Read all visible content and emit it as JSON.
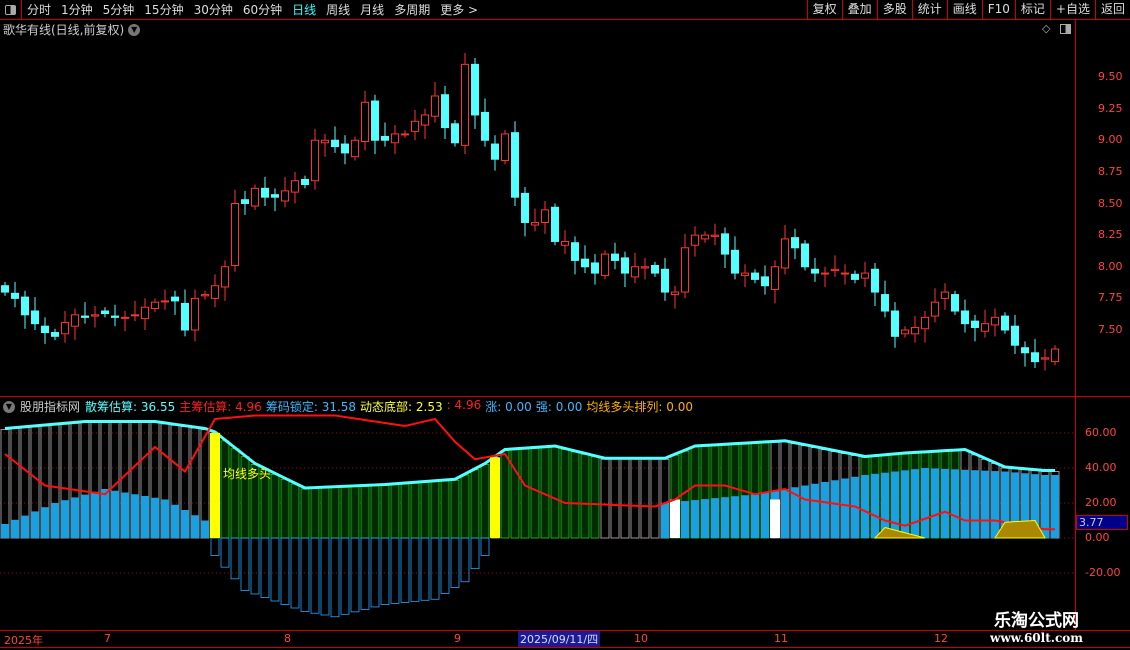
{
  "toolbar": {
    "periods": [
      "分时",
      "1分钟",
      "5分钟",
      "15分钟",
      "30分钟",
      "60分钟",
      "日线",
      "周线",
      "月线",
      "多周期",
      "更多 >"
    ],
    "active": "日线",
    "right": [
      "复权",
      "叠加",
      "多股",
      "统计",
      "画线",
      "F10",
      "标记",
      "+自选",
      "返回"
    ]
  },
  "price_panel": {
    "title": "歌华有线(日线,前复权)",
    "y_ticks": [
      "9.50",
      "9.25",
      "9.00",
      "8.75",
      "8.50",
      "8.25",
      "8.00",
      "7.75",
      "7.50"
    ],
    "closes": [
      7.8,
      7.75,
      7.62,
      7.55,
      7.48,
      7.45,
      7.56,
      7.62,
      7.6,
      7.62,
      7.63,
      7.6,
      7.6,
      7.62,
      7.68,
      7.72,
      7.73,
      7.73,
      7.5,
      7.75,
      7.78,
      7.85,
      8.0,
      8.5,
      8.5,
      8.62,
      8.55,
      8.55,
      8.6,
      8.68,
      8.65,
      9.0,
      9.0,
      8.95,
      8.9,
      9.0,
      9.3,
      9.0,
      9.0,
      9.05,
      9.05,
      9.15,
      9.2,
      9.35,
      9.1,
      8.98,
      9.6,
      9.2,
      9.0,
      8.85,
      9.05,
      8.55,
      8.35,
      8.35,
      8.45,
      8.2,
      8.2,
      8.05,
      8.0,
      7.95,
      8.1,
      8.05,
      7.95,
      8.0,
      8.0,
      7.95,
      7.8,
      7.8,
      8.15,
      8.25,
      8.25,
      8.25,
      8.1,
      7.95,
      7.95,
      7.9,
      7.85,
      8.0,
      8.22,
      8.15,
      8.0,
      7.95,
      7.95,
      7.98,
      7.95,
      7.9,
      7.95,
      7.8,
      7.65,
      7.45,
      7.5,
      7.52,
      7.6,
      7.72,
      7.8,
      7.65,
      7.55,
      7.52,
      7.55,
      7.6,
      7.5,
      7.38,
      7.32,
      7.25,
      7.28,
      7.35
    ],
    "up_color": "#ff3232",
    "down_color": "#54ffff"
  },
  "indicator": {
    "name": "股朋指标网",
    "fields": [
      {
        "label": "散筹估算:",
        "value": "36.55",
        "color": "#54ffff"
      },
      {
        "label": "主筹估算:",
        "value": "4.96",
        "color": "#ff2020"
      },
      {
        "label": "筹码锁定:",
        "value": "31.58",
        "color": "#3fb8ff"
      },
      {
        "label": "动态底部:",
        "value": "2.53",
        "color": "#ffff33"
      },
      {
        "label": ":",
        "value": "4.96",
        "color": "#ff2020"
      },
      {
        "label": "涨:",
        "value": "0.00",
        "color": "#3fb8ff"
      },
      {
        "label": "强:",
        "value": "0.00",
        "color": "#3fb8ff"
      },
      {
        "label": "均线多头排列:",
        "value": "0.00",
        "color": "#ffb000"
      }
    ],
    "annotation": "均线多头",
    "y_ticks": [
      "60.00",
      "40.00",
      "20.00",
      "0.00",
      "-20.00"
    ],
    "current_value": "3.77",
    "top_keys": [
      [
        0,
        62
      ],
      [
        8,
        66
      ],
      [
        15,
        66
      ],
      [
        20,
        62
      ],
      [
        21,
        60
      ],
      [
        25,
        42
      ],
      [
        30,
        28
      ],
      [
        38,
        30
      ],
      [
        45,
        33
      ],
      [
        48,
        42
      ],
      [
        50,
        50
      ],
      [
        55,
        52
      ],
      [
        60,
        45
      ],
      [
        66,
        45
      ],
      [
        69,
        52
      ],
      [
        75,
        54
      ],
      [
        78,
        55
      ],
      [
        86,
        46
      ],
      [
        90,
        48
      ],
      [
        96,
        50
      ],
      [
        100,
        40
      ],
      [
        104,
        38
      ]
    ],
    "red_keys": [
      [
        0,
        48
      ],
      [
        4,
        30
      ],
      [
        10,
        25
      ],
      [
        15,
        52
      ],
      [
        18,
        38
      ],
      [
        21,
        68
      ],
      [
        25,
        70
      ],
      [
        33,
        70
      ],
      [
        40,
        64
      ],
      [
        43,
        68
      ],
      [
        45,
        55
      ],
      [
        47,
        45
      ],
      [
        50,
        48
      ],
      [
        52,
        30
      ],
      [
        56,
        20
      ],
      [
        65,
        18
      ],
      [
        67,
        22
      ],
      [
        69,
        30
      ],
      [
        72,
        30
      ],
      [
        75,
        25
      ],
      [
        78,
        28
      ],
      [
        80,
        22
      ],
      [
        85,
        18
      ],
      [
        88,
        10
      ],
      [
        90,
        7
      ],
      [
        94,
        15
      ],
      [
        96,
        10
      ],
      [
        99,
        10
      ],
      [
        101,
        8
      ],
      [
        104,
        5
      ]
    ],
    "blue_keys": [
      [
        0,
        8
      ],
      [
        5,
        20
      ],
      [
        10,
        28
      ],
      [
        16,
        22
      ],
      [
        20,
        10
      ],
      [
        21,
        -10
      ],
      [
        24,
        -30
      ],
      [
        30,
        -42
      ],
      [
        33,
        -45
      ],
      [
        38,
        -38
      ],
      [
        43,
        -35
      ],
      [
        46,
        -25
      ],
      [
        48,
        -10
      ],
      [
        49,
        0
      ],
      [
        50,
        10
      ],
      [
        52,
        22
      ],
      [
        60,
        22
      ],
      [
        66,
        20
      ],
      [
        75,
        25
      ],
      [
        80,
        30
      ],
      [
        86,
        36
      ],
      [
        92,
        40
      ],
      [
        100,
        38
      ],
      [
        104,
        36
      ]
    ],
    "yellow_bars": [
      21,
      49
    ],
    "white_bars": [
      67,
      77
    ]
  },
  "time_axis": {
    "labels": [
      {
        "text": "2025年",
        "i": 0
      },
      {
        "text": "7",
        "i": 10
      },
      {
        "text": "8",
        "i": 28
      },
      {
        "text": "9",
        "i": 45
      },
      {
        "text": "10",
        "i": 63
      },
      {
        "text": "11",
        "i": 77
      },
      {
        "text": "12",
        "i": 93
      }
    ],
    "cursor_date": "2025/09/11/四"
  },
  "watermark": {
    "line1": "乐淘公式网",
    "line2": "www.60lt.com"
  }
}
